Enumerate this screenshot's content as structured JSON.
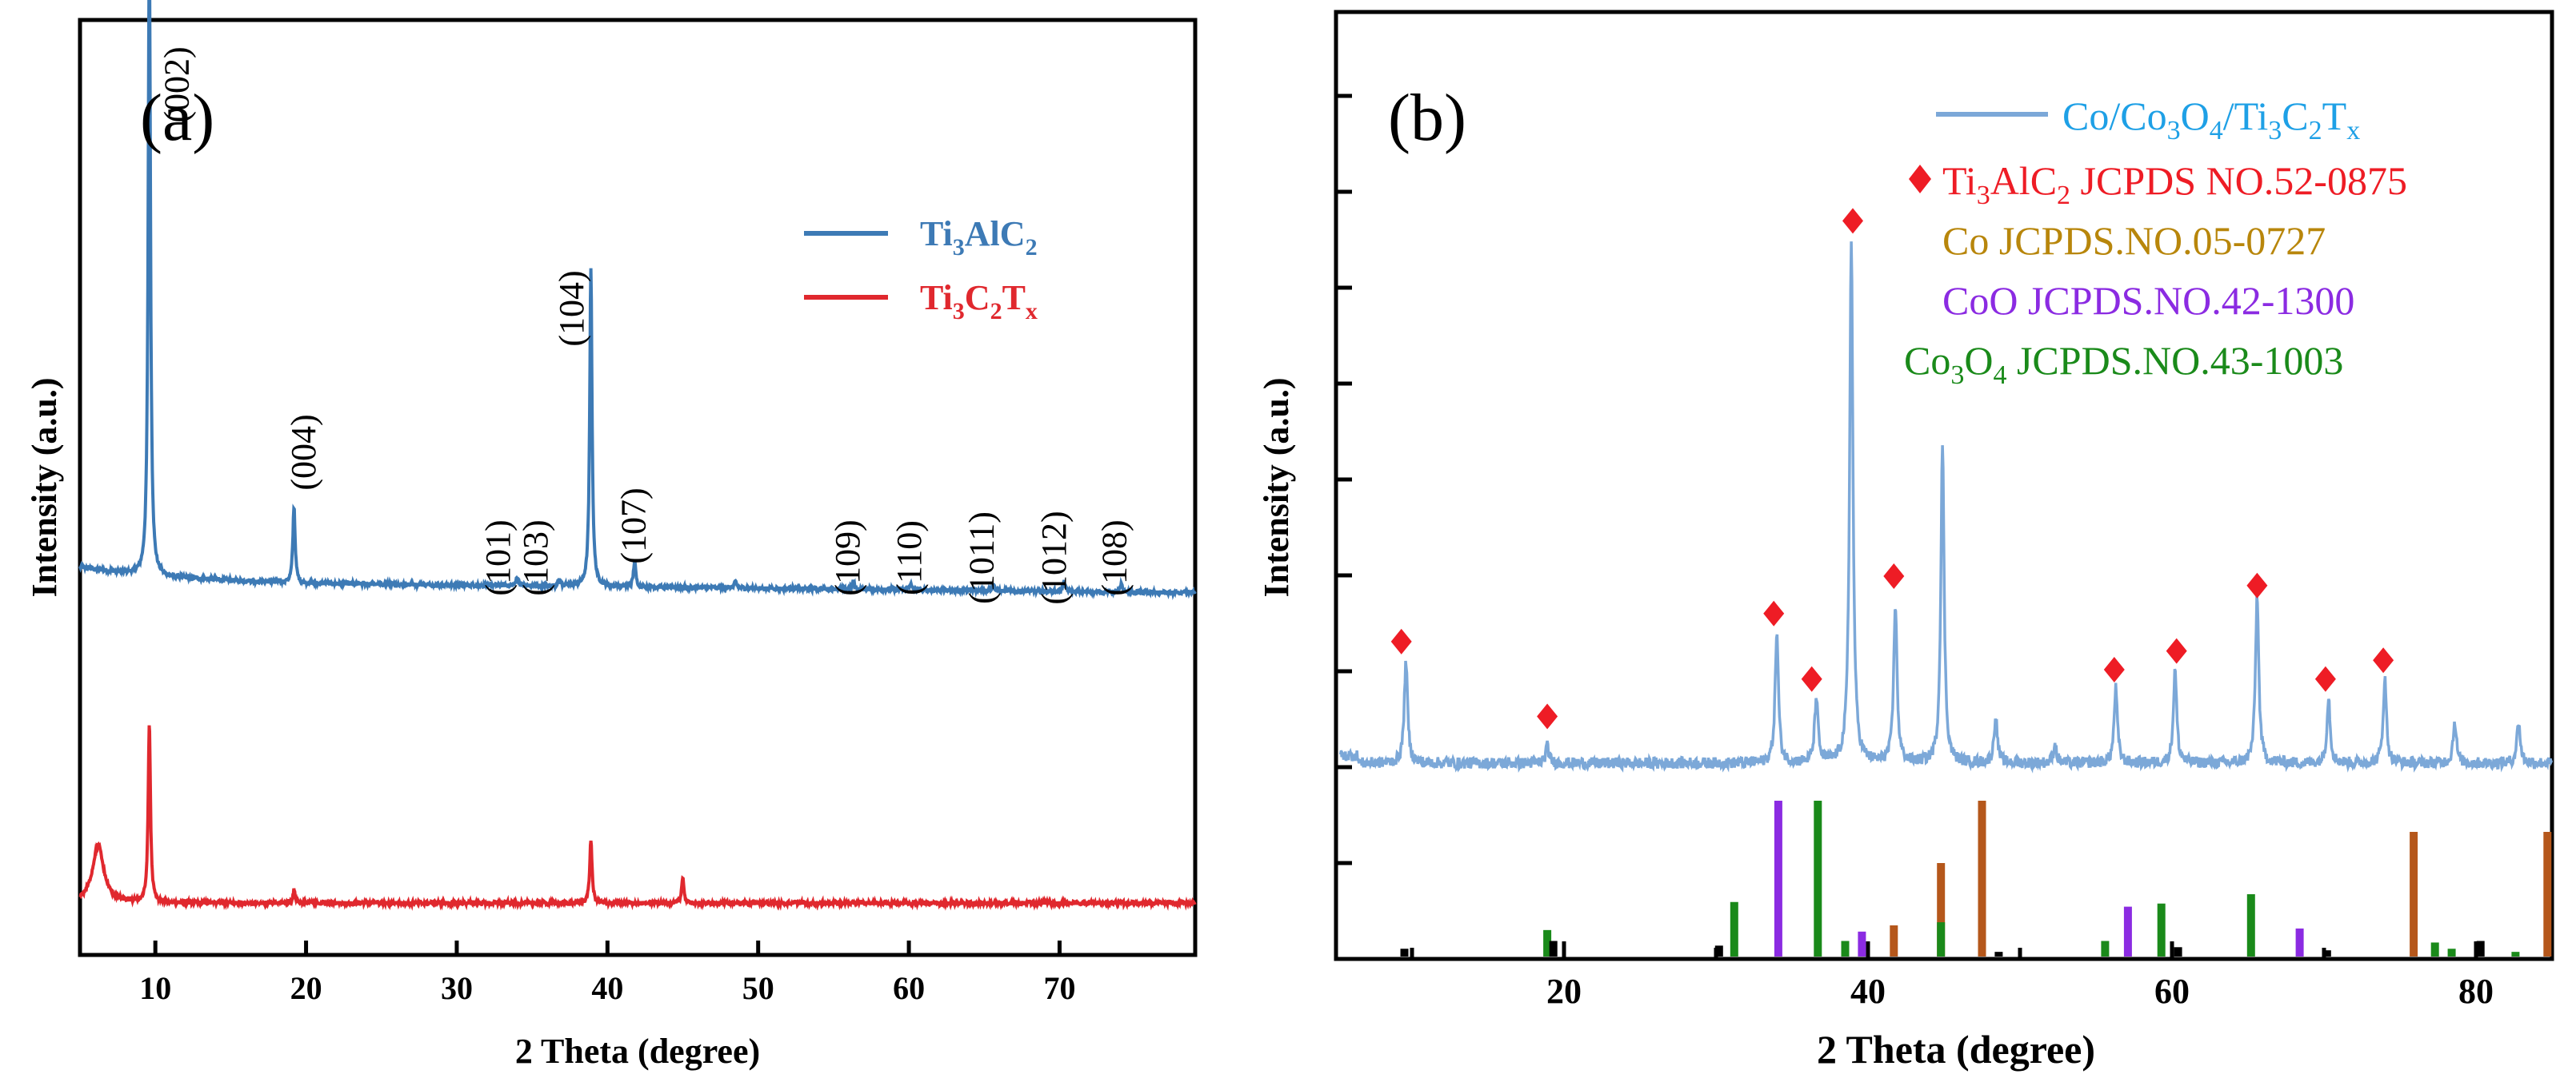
{
  "chart_data": [
    {
      "type": "line",
      "panel_label": "(a)",
      "xlabel": "2 Theta (degree)",
      "ylabel": "Intensity (a.u.)",
      "xlim": [
        5,
        79
      ],
      "xticks": [
        10,
        20,
        30,
        40,
        50,
        60,
        70
      ],
      "y_ticks_labeled": false,
      "legend": {
        "position": "top-right",
        "entries": [
          {
            "base": "Ti",
            "sub1": "3",
            "mid": "AlC",
            "sub2": "2",
            "color": "#3d7ab5"
          },
          {
            "base": "Ti",
            "sub1": "3",
            "mid": "C",
            "sub2": "2",
            "mid2": "T",
            "sub3": "x",
            "color": "#e0282e"
          }
        ]
      },
      "series": [
        {
          "name": "Ti3AlC2",
          "color": "#3d7ab5",
          "baseline": [
            [
              5,
              0.585
            ],
            [
              10,
              0.57
            ],
            [
              20,
              0.56
            ],
            [
              40,
              0.555
            ],
            [
              79,
              0.545
            ]
          ],
          "peaks": [
            {
              "x": 9.6,
              "h": 1.0
            },
            {
              "x": 19.2,
              "h": 0.12
            },
            {
              "x": 34.0,
              "h": 0.012
            },
            {
              "x": 36.8,
              "h": 0.01
            },
            {
              "x": 38.9,
              "h": 0.5
            },
            {
              "x": 41.8,
              "h": 0.04
            },
            {
              "x": 48.5,
              "h": 0.01
            },
            {
              "x": 56.3,
              "h": 0.012
            },
            {
              "x": 60.1,
              "h": 0.01
            },
            {
              "x": 65.6,
              "h": 0.01
            },
            {
              "x": 70.3,
              "h": 0.015
            },
            {
              "x": 74.1,
              "h": 0.012
            }
          ]
        },
        {
          "name": "Ti3C2Tx",
          "color": "#e0282e",
          "baseline": [
            [
              5,
              0.06
            ],
            [
              79,
              0.06
            ]
          ],
          "peaks": [
            {
              "x": 6.2,
              "h": 0.09,
              "w": 0.45
            },
            {
              "x": 9.6,
              "h": 0.28
            },
            {
              "x": 19.2,
              "h": 0.02
            },
            {
              "x": 38.9,
              "h": 0.1
            },
            {
              "x": 45.0,
              "h": 0.04
            }
          ]
        }
      ],
      "annotations": [
        {
          "text": "(002)",
          "x": 12.2,
          "y": 1.34
        },
        {
          "text": "(004)",
          "x": 20.6,
          "y": 0.765
        },
        {
          "text": "(101)",
          "x": 33.5,
          "y": 0.6
        },
        {
          "text": "(103)",
          "x": 36.0,
          "y": 0.6
        },
        {
          "text": "(104)",
          "x": 38.4,
          "y": 0.99
        },
        {
          "text": "(107)",
          "x": 42.5,
          "y": 0.65
        },
        {
          "text": "(109)",
          "x": 56.7,
          "y": 0.6
        },
        {
          "text": "(110)",
          "x": 60.8,
          "y": 0.6
        },
        {
          "text": "(1011)",
          "x": 65.6,
          "y": 0.6
        },
        {
          "text": "(1012)",
          "x": 70.4,
          "y": 0.6
        },
        {
          "text": "(108)",
          "x": 74.4,
          "y": 0.6
        }
      ]
    },
    {
      "type": "line",
      "panel_label": "(b)",
      "xlabel": "2 Theta (degree)",
      "ylabel": "Intensity (a.u.)",
      "xlim": [
        5,
        85
      ],
      "xticks": [
        20,
        40,
        60,
        80
      ],
      "y_ticks_labeled": false,
      "legend": {
        "position": "top-right",
        "entries": [
          {
            "label": "Co/Co3O4/Ti3C2Tx",
            "color": "#1ea0e6",
            "marker": "line"
          },
          {
            "label": "Ti3AlC2 JCPDS NO.52-0875",
            "color": "#ee1c25",
            "marker": "diamond"
          },
          {
            "label": "Co JCPDS.NO.05-0727",
            "color": "#b8860b",
            "marker": "none"
          },
          {
            "label": "CoO JCPDS.NO.42-1300",
            "color": "#8b2be2",
            "marker": "none"
          },
          {
            "label": "Co3O4 JCPDS.NO.43-1003",
            "color": "#1a8a1a",
            "marker": "none"
          }
        ]
      },
      "pattern": {
        "name": "Co/Co3O4/Ti3C2Tx",
        "color": "#7ca8d8",
        "baseline": 0.02,
        "peaks": [
          {
            "x": 9.6,
            "h": 0.11
          },
          {
            "x": 18.9,
            "h": 0.018
          },
          {
            "x": 34.0,
            "h": 0.14
          },
          {
            "x": 36.6,
            "h": 0.07
          },
          {
            "x": 38.9,
            "h": 0.56
          },
          {
            "x": 41.8,
            "h": 0.17
          },
          {
            "x": 44.9,
            "h": 0.34
          },
          {
            "x": 48.4,
            "h": 0.05
          },
          {
            "x": 52.3,
            "h": 0.02
          },
          {
            "x": 56.3,
            "h": 0.08
          },
          {
            "x": 60.2,
            "h": 0.1
          },
          {
            "x": 65.6,
            "h": 0.18
          },
          {
            "x": 70.3,
            "h": 0.07
          },
          {
            "x": 74.0,
            "h": 0.09
          },
          {
            "x": 78.6,
            "h": 0.045
          },
          {
            "x": 82.8,
            "h": 0.045
          }
        ],
        "y_range": [
          0,
          0.64
        ]
      },
      "markers": [
        {
          "x": 9.3,
          "y": 0.15
        },
        {
          "x": 18.9,
          "y": 0.07
        },
        {
          "x": 33.8,
          "y": 0.18
        },
        {
          "x": 36.3,
          "y": 0.11
        },
        {
          "x": 39.0,
          "y": 0.6
        },
        {
          "x": 41.7,
          "y": 0.22
        },
        {
          "x": 56.2,
          "y": 0.12
        },
        {
          "x": 60.3,
          "y": 0.14
        },
        {
          "x": 65.6,
          "y": 0.21
        },
        {
          "x": 70.1,
          "y": 0.11
        },
        {
          "x": 73.9,
          "y": 0.13
        }
      ],
      "reference_lines": [
        {
          "ref": "Co",
          "color": "#b5571b",
          "lines": [
            [
              41.7,
              0.2
            ],
            [
              44.8,
              0.6
            ],
            [
              47.5,
              1.0
            ],
            [
              75.9,
              0.8
            ],
            [
              84.7,
              0.8
            ]
          ]
        },
        {
          "ref": "CoO",
          "color": "#8b2be2",
          "lines": [
            [
              34.1,
              1.0
            ],
            [
              39.6,
              0.16
            ],
            [
              57.1,
              0.32
            ],
            [
              68.4,
              0.18
            ]
          ]
        },
        {
          "ref": "Co3O4",
          "color": "#1a8a1a",
          "lines": [
            [
              18.9,
              0.17
            ],
            [
              31.2,
              0.35
            ],
            [
              36.7,
              1.0
            ],
            [
              38.5,
              0.1
            ],
            [
              44.8,
              0.22
            ],
            [
              55.6,
              0.1
            ],
            [
              59.3,
              0.34
            ],
            [
              65.2,
              0.4
            ],
            [
              77.3,
              0.09
            ],
            [
              78.4,
              0.05
            ],
            [
              82.6,
              0.03
            ]
          ]
        },
        {
          "ref": "Ti3AlC2",
          "color": "#000000",
          "lines": [
            [
              9.5,
              0.05
            ],
            [
              19.3,
              0.1
            ],
            [
              30.2,
              0.07
            ],
            [
              48.6,
              0.03
            ],
            [
              60.4,
              0.06
            ],
            [
              70.2,
              0.04
            ],
            [
              80.3,
              0.1
            ]
          ]
        }
      ]
    }
  ]
}
